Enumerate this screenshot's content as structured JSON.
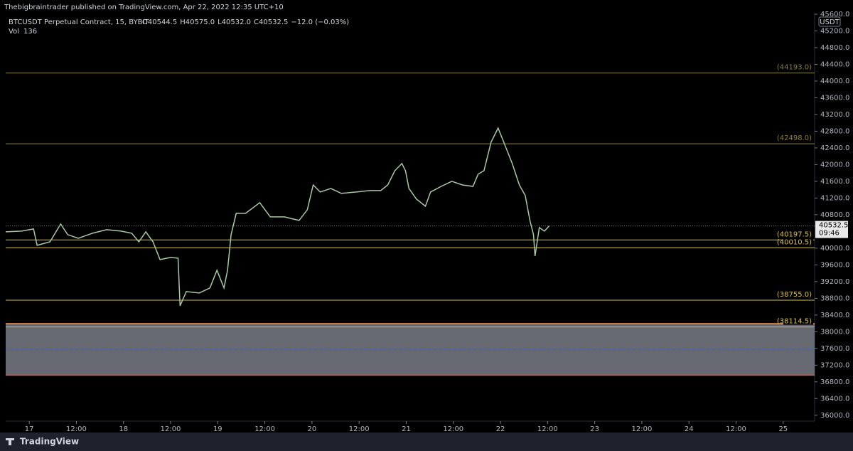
{
  "chart_data": {
    "type": "line",
    "title": "Thebigbraintrader published on TradingView.com, Apr 22, 2022 12:35 UTC+10",
    "symbol": "BTCUSDT Perpetual Contract, 15, BYBIT",
    "ohlc": [
      "O40544.5",
      "H40575.0",
      "L40532.0",
      "C40532.5",
      "−12.0 (−0.03%)"
    ],
    "volume_label": "Vol",
    "volume": 136,
    "currency": "USDT",
    "brand": "TradingView",
    "grid": false,
    "series": [
      {
        "name": "BTCUSDT",
        "color": "#a9c9a4",
        "x": [
          -6.0,
          -2.0,
          1.1,
          2.0,
          5.3,
          8.0,
          9.8,
          12.5,
          16.1,
          19.7,
          23.4,
          26.1,
          27.9,
          29.7,
          31.5,
          33.3,
          36.0,
          37.9,
          38.4,
          40.0,
          43.3,
          46.0,
          47.8,
          49.6,
          50.5,
          51.4,
          52.7,
          55.1,
          58.7,
          61.4,
          65.0,
          68.7,
          70.8,
          72.3,
          74.1,
          76.8,
          79.5,
          83.2,
          86.8,
          89.5,
          91.3,
          93.1,
          94.9,
          95.8,
          96.7,
          98.6,
          100.9,
          102.2,
          104.9,
          107.6,
          110.3,
          113.0,
          114.3,
          115.8,
          117.6,
          119.4,
          121.2,
          123.0,
          124.8,
          126.3,
          127.5,
          128.4,
          128.8,
          129.9,
          131.2,
          132.4
        ],
        "values": [
          40391,
          40408,
          40459,
          40068,
          40153,
          40578,
          40323,
          40238,
          40357,
          40442,
          40408,
          40357,
          40153,
          40391,
          40153,
          39727,
          39778,
          39761,
          38621,
          38961,
          38927,
          39047,
          39472,
          39047,
          39472,
          40323,
          40834,
          40834,
          41089,
          40749,
          40749,
          40663,
          40919,
          41514,
          41344,
          41429,
          41310,
          41344,
          41378,
          41378,
          41514,
          41855,
          42025,
          41855,
          41429,
          41174,
          41004,
          41344,
          41480,
          41600,
          41514,
          41480,
          41770,
          41855,
          42536,
          42876,
          42451,
          42025,
          41514,
          41259,
          40663,
          40323,
          39812,
          40493,
          40408,
          40532.5
        ]
      }
    ],
    "levels": [
      {
        "value": 44193.0,
        "label": "(44193.0)",
        "color": "#8c7f3c"
      },
      {
        "value": 42498.0,
        "label": "(42498.0)",
        "color": "#8c7f3c"
      },
      {
        "value": 40197.5,
        "label": "(40197.5)",
        "color": "#d6c24a"
      },
      {
        "value": 40010.5,
        "label": "(40010.5)",
        "color": "#d6c24a"
      },
      {
        "value": 38755.0,
        "label": "(38755.0)",
        "color": "#d6c24a"
      },
      {
        "value": 38114.5,
        "label": "(38114.5)",
        "color": "#d6c24a"
      }
    ],
    "zone": {
      "from": 36960,
      "to": 38195,
      "color": "#787b86",
      "top_color": "#e8873a",
      "bottom_color": "#e0504a"
    },
    "last_price": {
      "value": 40532.5,
      "label": "40532.5",
      "countdown": "09:46"
    },
    "xlim": [
      -6,
      200
    ],
    "xticks": [
      {
        "value": 0,
        "label": "17"
      },
      {
        "value": 12,
        "label": "12:00"
      },
      {
        "value": 24,
        "label": "18"
      },
      {
        "value": 36,
        "label": "12:00"
      },
      {
        "value": 48,
        "label": "19"
      },
      {
        "value": 60,
        "label": "12:00"
      },
      {
        "value": 72,
        "label": "20"
      },
      {
        "value": 84,
        "label": "12:00"
      },
      {
        "value": 96,
        "label": "21"
      },
      {
        "value": 108,
        "label": "12:00"
      },
      {
        "value": 120,
        "label": "22"
      },
      {
        "value": 132,
        "label": "12:00"
      },
      {
        "value": 144,
        "label": "23"
      },
      {
        "value": 156,
        "label": "12:00"
      },
      {
        "value": 168,
        "label": "24"
      },
      {
        "value": 180,
        "label": "12:00"
      },
      {
        "value": 192,
        "label": "25"
      }
    ],
    "ylim": [
      35860,
      45600
    ],
    "yticks": [
      {
        "value": 36000,
        "label": "36000.0"
      },
      {
        "value": 36400,
        "label": "36400.0"
      },
      {
        "value": 36800,
        "label": "36800.0"
      },
      {
        "value": 37200,
        "label": "37200.0"
      },
      {
        "value": 37600,
        "label": "37600.0"
      },
      {
        "value": 38000,
        "label": "38000.0"
      },
      {
        "value": 38400,
        "label": "38400.0"
      },
      {
        "value": 38800,
        "label": "38800.0"
      },
      {
        "value": 39200,
        "label": "39200.0"
      },
      {
        "value": 39600,
        "label": "39600.0"
      },
      {
        "value": 40000,
        "label": "40000.0"
      },
      {
        "value": 40800,
        "label": "40800.0"
      },
      {
        "value": 41200,
        "label": "41200.0"
      },
      {
        "value": 41600,
        "label": "41600.0"
      },
      {
        "value": 42000,
        "label": "42000.0"
      },
      {
        "value": 42400,
        "label": "42400.0"
      },
      {
        "value": 42800,
        "label": "42800.0"
      },
      {
        "value": 43200,
        "label": "43200.0"
      },
      {
        "value": 43600,
        "label": "43600.0"
      },
      {
        "value": 44000,
        "label": "44000.0"
      },
      {
        "value": 44400,
        "label": "44400.0"
      },
      {
        "value": 44800,
        "label": "44800.0"
      },
      {
        "value": 45200,
        "label": "45200.0"
      },
      {
        "value": 45600,
        "label": "45600.0"
      }
    ]
  }
}
